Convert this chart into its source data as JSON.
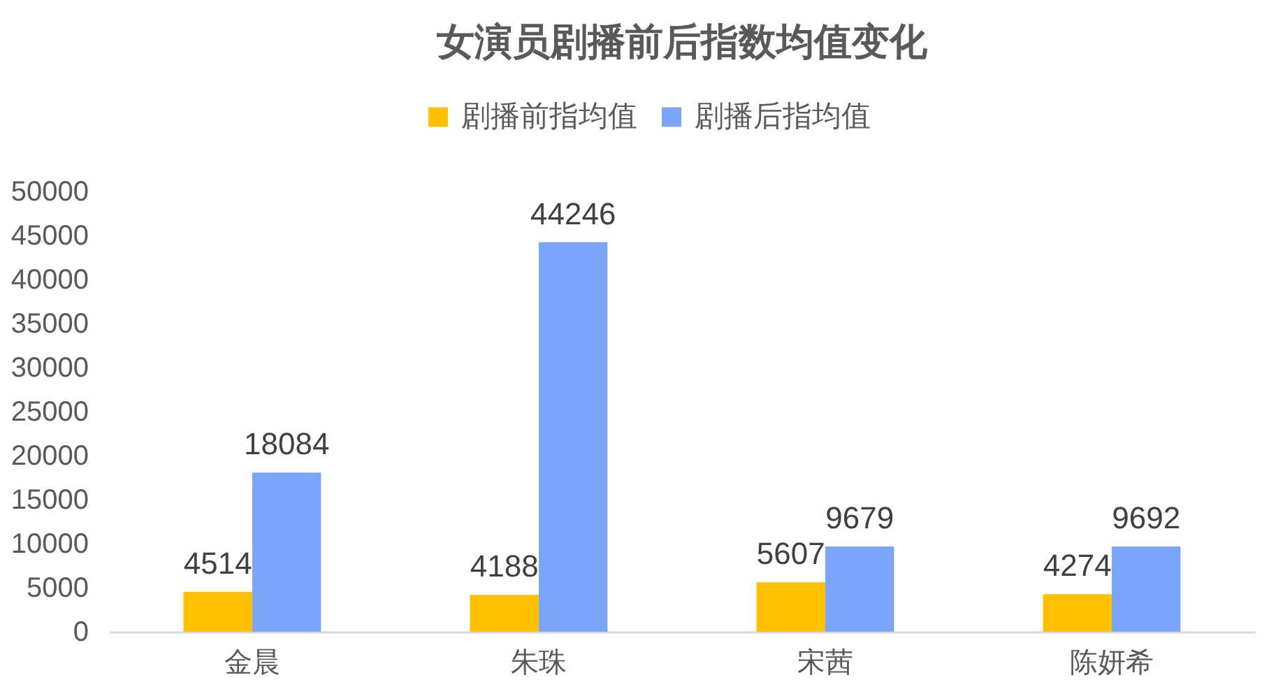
{
  "chart_data": {
    "type": "bar",
    "title": "女演员剧播前后指数均值变化",
    "categories": [
      "金晨",
      "朱珠",
      "宋茜",
      "陈妍希"
    ],
    "series": [
      {
        "name": "剧播前指均值",
        "color": "#ffc000",
        "values": [
          4514,
          4188,
          5607,
          4274
        ]
      },
      {
        "name": "剧播后指均值",
        "color": "#7aa5f8",
        "values": [
          18084,
          44246,
          9679,
          9692
        ]
      }
    ],
    "ylim": [
      0,
      50000
    ],
    "yticks": [
      0,
      5000,
      10000,
      15000,
      20000,
      25000,
      30000,
      35000,
      40000,
      45000,
      50000
    ],
    "legend": "top",
    "data_labels": true
  }
}
